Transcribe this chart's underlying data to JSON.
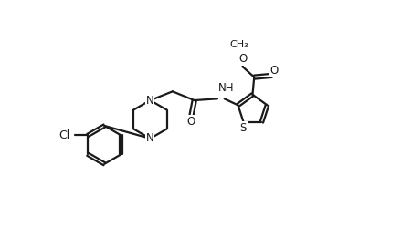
{
  "bg_color": "#ffffff",
  "line_color": "#1a1a1a",
  "lw": 1.6,
  "fs": 8.5,
  "xlim": [
    0,
    10
  ],
  "ylim": [
    0,
    5.5
  ]
}
